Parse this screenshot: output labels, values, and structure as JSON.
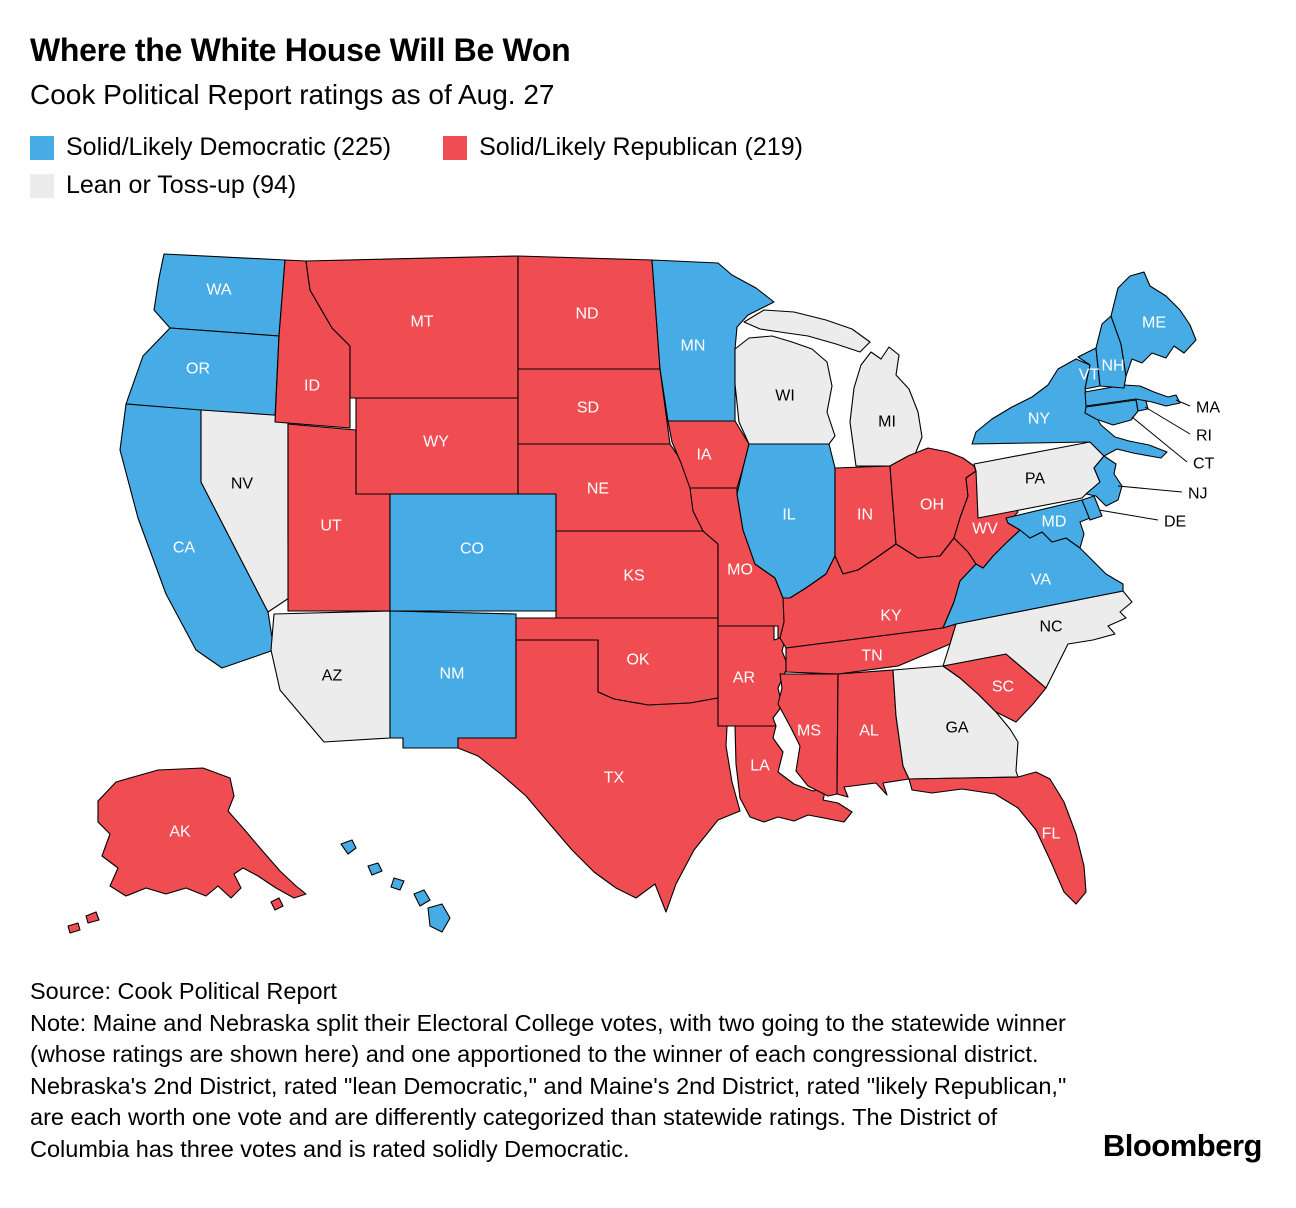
{
  "chart_data": {
    "type": "choropleth",
    "title": "Where the White House Will Be Won",
    "subtitle": "Cook Political Report ratings as of Aug. 27",
    "legend": [
      {
        "key": "dem",
        "label": "Solid/Likely Democratic (225)",
        "color": "#47ACE6",
        "count": 225
      },
      {
        "key": "rep",
        "label": "Solid/Likely Republican (219)",
        "color": "#EF4D51",
        "count": 219
      },
      {
        "key": "tossup",
        "label": "Lean or Toss-up (94)",
        "color": "#ECECEC",
        "count": 94
      }
    ],
    "label_colors": {
      "dem": "#ffffff",
      "rep": "#ffffff",
      "tossup": "#000000"
    },
    "states": [
      {
        "abbr": "WA",
        "rating": "dem"
      },
      {
        "abbr": "OR",
        "rating": "dem"
      },
      {
        "abbr": "CA",
        "rating": "dem"
      },
      {
        "abbr": "NV",
        "rating": "tossup"
      },
      {
        "abbr": "ID",
        "rating": "rep"
      },
      {
        "abbr": "MT",
        "rating": "rep"
      },
      {
        "abbr": "WY",
        "rating": "rep"
      },
      {
        "abbr": "UT",
        "rating": "rep"
      },
      {
        "abbr": "CO",
        "rating": "dem"
      },
      {
        "abbr": "AZ",
        "rating": "tossup"
      },
      {
        "abbr": "NM",
        "rating": "dem"
      },
      {
        "abbr": "ND",
        "rating": "rep"
      },
      {
        "abbr": "SD",
        "rating": "rep"
      },
      {
        "abbr": "NE",
        "rating": "rep"
      },
      {
        "abbr": "KS",
        "rating": "rep"
      },
      {
        "abbr": "OK",
        "rating": "rep"
      },
      {
        "abbr": "TX",
        "rating": "rep"
      },
      {
        "abbr": "MN",
        "rating": "dem"
      },
      {
        "abbr": "IA",
        "rating": "rep"
      },
      {
        "abbr": "MO",
        "rating": "rep"
      },
      {
        "abbr": "AR",
        "rating": "rep"
      },
      {
        "abbr": "LA",
        "rating": "rep"
      },
      {
        "abbr": "WI",
        "rating": "tossup"
      },
      {
        "abbr": "MI",
        "rating": "tossup"
      },
      {
        "abbr": "IL",
        "rating": "dem"
      },
      {
        "abbr": "IN",
        "rating": "rep"
      },
      {
        "abbr": "OH",
        "rating": "rep"
      },
      {
        "abbr": "KY",
        "rating": "rep"
      },
      {
        "abbr": "TN",
        "rating": "rep"
      },
      {
        "abbr": "MS",
        "rating": "rep"
      },
      {
        "abbr": "AL",
        "rating": "rep"
      },
      {
        "abbr": "GA",
        "rating": "tossup"
      },
      {
        "abbr": "FL",
        "rating": "rep"
      },
      {
        "abbr": "SC",
        "rating": "rep"
      },
      {
        "abbr": "NC",
        "rating": "tossup"
      },
      {
        "abbr": "VA",
        "rating": "dem"
      },
      {
        "abbr": "WV",
        "rating": "rep"
      },
      {
        "abbr": "PA",
        "rating": "tossup"
      },
      {
        "abbr": "MD",
        "rating": "dem"
      },
      {
        "abbr": "DE",
        "rating": "dem"
      },
      {
        "abbr": "NJ",
        "rating": "dem"
      },
      {
        "abbr": "NY",
        "rating": "dem"
      },
      {
        "abbr": "CT",
        "rating": "dem"
      },
      {
        "abbr": "RI",
        "rating": "dem"
      },
      {
        "abbr": "MA",
        "rating": "dem"
      },
      {
        "abbr": "VT",
        "rating": "dem"
      },
      {
        "abbr": "NH",
        "rating": "dem"
      },
      {
        "abbr": "ME",
        "rating": "dem"
      },
      {
        "abbr": "AK",
        "rating": "rep"
      },
      {
        "abbr": "HI",
        "rating": "dem"
      }
    ],
    "external_labels": [
      "MA",
      "RI",
      "CT",
      "NJ",
      "DE"
    ]
  },
  "footer": {
    "source": "Source: Cook Political Report",
    "note": "Note: Maine and Nebraska split their Electoral College votes, with two going to the statewide winner (whose ratings are shown here) and one apportioned to the winner of each congressional district. Nebraska's 2nd District, rated \"lean Democratic,\" and Maine's 2nd District, rated \"likely Republican,\" are each worth one vote and are differently categorized than statewide ratings. The District of Columbia has three votes and is rated solidly Democratic.",
    "brand": "Bloomberg"
  }
}
